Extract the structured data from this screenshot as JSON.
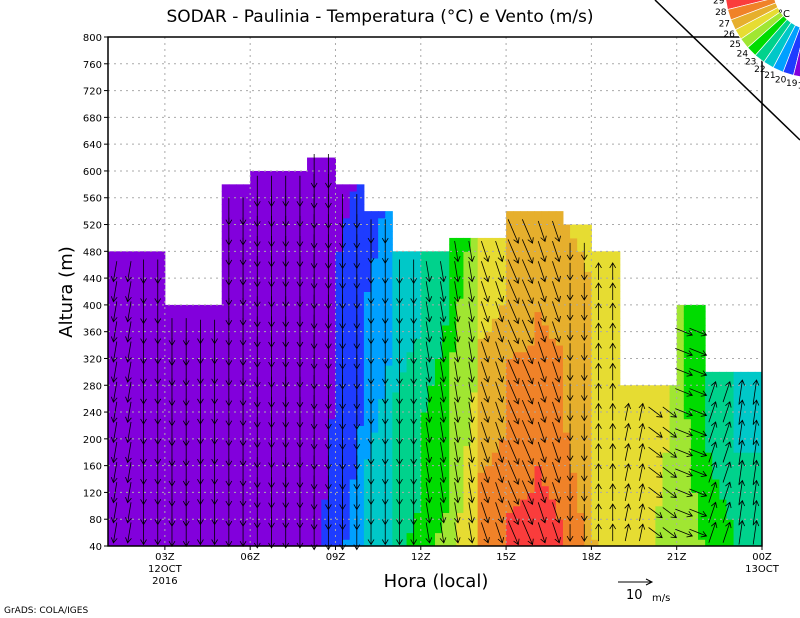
{
  "chart_data": {
    "type": "heatmap",
    "title": "SODAR - Paulinia - Temperatura (°C) e Vento (m/s)",
    "xlabel": "Hora (local)",
    "ylabel": "Altura (m)",
    "xlim": [
      1,
      24
    ],
    "ylim": [
      40,
      800
    ],
    "grid": true,
    "yticks": [
      40,
      80,
      120,
      160,
      200,
      240,
      280,
      320,
      360,
      400,
      440,
      480,
      520,
      560,
      600,
      640,
      680,
      720,
      760,
      800
    ],
    "xticks": [
      {
        "hour": 3,
        "label": "03Z",
        "sub1": "12OCT",
        "sub2": "2016"
      },
      {
        "hour": 6,
        "label": "06Z"
      },
      {
        "hour": 9,
        "label": "09Z"
      },
      {
        "hour": 12,
        "label": "12Z"
      },
      {
        "hour": 15,
        "label": "15Z"
      },
      {
        "hour": 18,
        "label": "18Z"
      },
      {
        "hour": 21,
        "label": "21Z"
      },
      {
        "hour": 24,
        "label": "00Z",
        "sub1": "13OCT"
      }
    ],
    "legend": {
      "unit": "°C",
      "placement": "top-right",
      "levels": [
        29,
        28,
        27,
        26,
        25,
        24,
        23,
        22,
        21,
        20,
        19,
        18
      ],
      "colors": [
        "#f00082",
        "#fa3c3c",
        "#f08228",
        "#e6af2d",
        "#e6dc32",
        "#a0e632",
        "#00dc00",
        "#00d28c",
        "#00c8c8",
        "#00a0ff",
        "#1e3cff",
        "#8200dc",
        "#a000c8"
      ]
    },
    "vector_ref": {
      "label": "10",
      "unit": "m/s"
    },
    "columns": [
      {
        "h": 1,
        "top": 480,
        "tb": 18.5,
        "tt": 18.6,
        "u": -1,
        "v": -6
      },
      {
        "h": 2,
        "top": 480,
        "tb": 18.6,
        "tt": 18.6,
        "u": 0,
        "v": -7
      },
      {
        "h": 3,
        "top": 400,
        "tb": 18.6,
        "tt": 18.5,
        "u": 0,
        "v": -8
      },
      {
        "h": 4,
        "top": 400,
        "tb": 18.6,
        "tt": 18.6,
        "u": 0,
        "v": -7
      },
      {
        "h": 5,
        "top": 580,
        "tb": 18.6,
        "tt": 18.4,
        "u": 0,
        "v": -8
      },
      {
        "h": 6,
        "top": 600,
        "tb": 18.6,
        "tt": 18.5,
        "u": 0,
        "v": -9
      },
      {
        "h": 7,
        "top": 600,
        "tb": 18.6,
        "tt": 18.5,
        "u": 0,
        "v": -9
      },
      {
        "h": 8,
        "top": 620,
        "tb": 18.8,
        "tt": 18.5,
        "u": 0,
        "v": -10
      },
      {
        "h": 9,
        "top": 580,
        "tb": 19.8,
        "tt": 18.8,
        "u": 0,
        "v": -10
      },
      {
        "h": 10,
        "top": 540,
        "tb": 21.5,
        "tt": 19.5,
        "u": 0,
        "v": -7
      },
      {
        "h": 11,
        "top": 480,
        "tb": 22.8,
        "tt": 21.2,
        "u": 0,
        "v": -7
      },
      {
        "h": 12,
        "top": 480,
        "tb": 23.8,
        "tt": 22.0,
        "u": 1,
        "v": -6
      },
      {
        "h": 13,
        "top": 500,
        "tb": 24.8,
        "tt": 23.5,
        "u": 1,
        "v": -6
      },
      {
        "h": 14,
        "top": 500,
        "tb": 27.5,
        "tt": 25.2,
        "u": 2,
        "v": -6
      },
      {
        "h": 15,
        "top": 540,
        "tb": 28.2,
        "tt": 26.0,
        "u": 3,
        "v": -7
      },
      {
        "h": 16,
        "top": 540,
        "tb": 28.5,
        "tt": 26.3,
        "u": 2,
        "v": -6
      },
      {
        "h": 17,
        "top": 520,
        "tb": 27.5,
        "tt": 26.0,
        "u": 0,
        "v": -5
      },
      {
        "h": 18,
        "top": 480,
        "tb": 26.0,
        "tt": 25.5,
        "u": 0,
        "v": 5
      },
      {
        "h": 19,
        "top": 280,
        "tb": 25.2,
        "tt": 25.5,
        "u": 1,
        "v": 5
      },
      {
        "h": 20,
        "top": 280,
        "tb": 25.0,
        "tt": 25.5,
        "u": 4,
        "v": -3
      },
      {
        "h": 21,
        "top": 400,
        "tb": 24.3,
        "tt": 24.0,
        "u": 5,
        "v": -2
      },
      {
        "h": 22,
        "top": 300,
        "tb": 23.5,
        "tt": 22.5,
        "u": 2,
        "v": 6
      },
      {
        "h": 23,
        "top": 300,
        "tb": 22.5,
        "tt": 21.5,
        "u": 1,
        "v": 7
      }
    ]
  },
  "footer": "GrADS: COLA/IGES"
}
